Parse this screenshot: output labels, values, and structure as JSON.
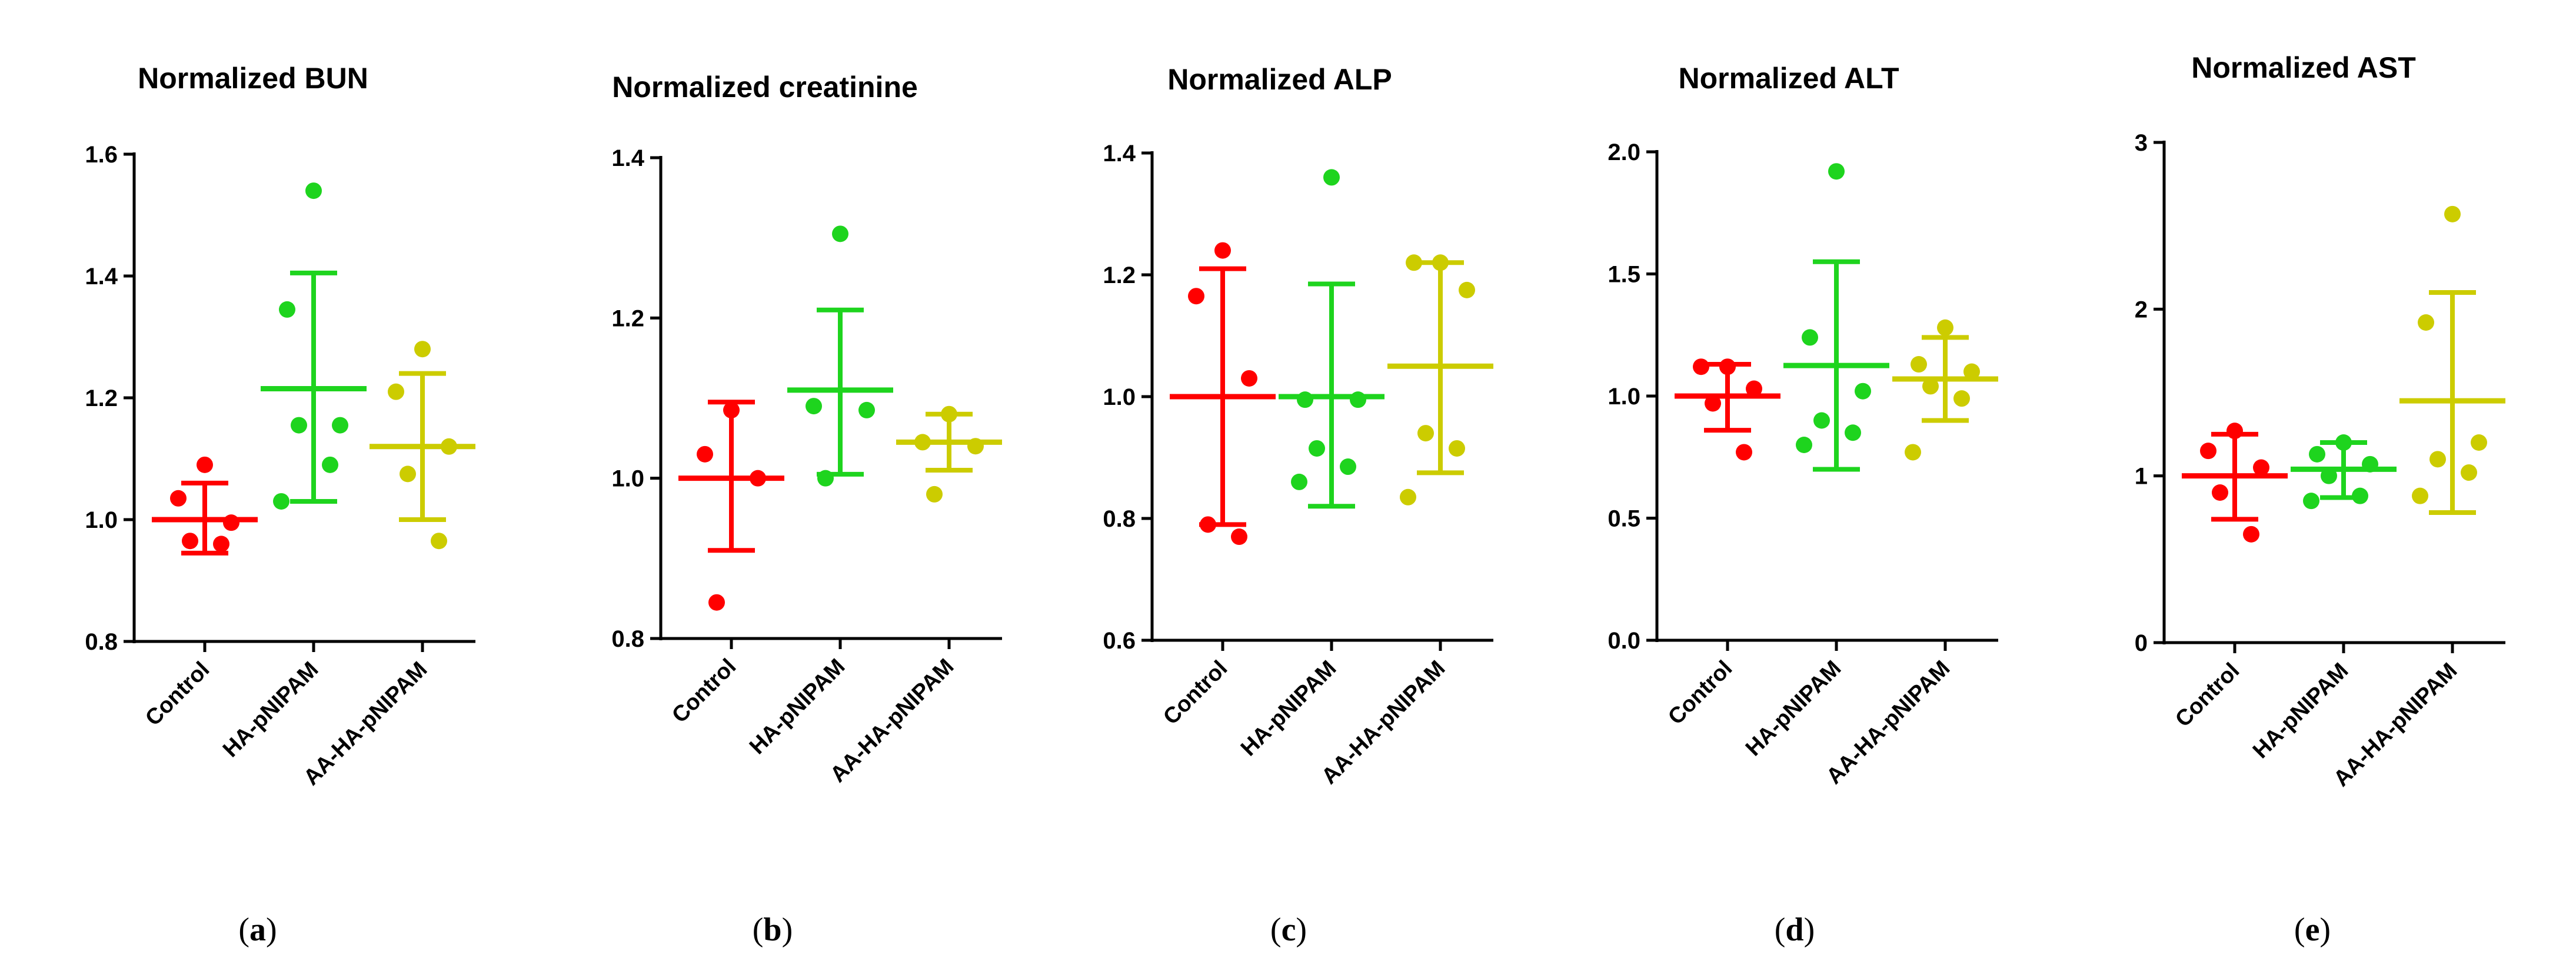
{
  "colors": {
    "control": "#ff0000",
    "ha": "#1ed41e",
    "aa": "#cccc00"
  },
  "chart_data": [
    {
      "type": "scatter",
      "letter": "a",
      "title": "Normalized BUN",
      "ylim": [
        0.8,
        1.6
      ],
      "yticks": [
        "0.8",
        "1.0",
        "1.2",
        "1.4",
        "1.6"
      ],
      "categories": [
        "Control",
        "HA-pNIPAM",
        "AA-HA-pNIPAM"
      ],
      "series": [
        {
          "name": "Control",
          "points": [
            1.09,
            1.035,
            0.995,
            0.965,
            0.96
          ],
          "mean": 1.0,
          "sd_low": 0.945,
          "sd_high": 1.06
        },
        {
          "name": "HA-pNIPAM",
          "points": [
            1.54,
            1.345,
            1.155,
            1.155,
            1.09,
            1.03
          ],
          "mean": 1.215,
          "sd_low": 1.03,
          "sd_high": 1.405
        },
        {
          "name": "AA-HA-pNIPAM",
          "points": [
            1.28,
            1.21,
            1.12,
            1.075,
            0.965
          ],
          "mean": 1.12,
          "sd_low": 1.0,
          "sd_high": 1.24
        }
      ]
    },
    {
      "type": "scatter",
      "letter": "b",
      "title": "Normalized creatinine",
      "ylim": [
        0.8,
        1.4
      ],
      "yticks": [
        "0.8",
        "1.0",
        "1.2",
        "1.4"
      ],
      "categories": [
        "Control",
        "HA-pNIPAM",
        "AA-HA-pNIPAM"
      ],
      "series": [
        {
          "name": "Control",
          "points": [
            1.085,
            1.03,
            1.0,
            0.845
          ],
          "mean": 1.0,
          "sd_low": 0.91,
          "sd_high": 1.095
        },
        {
          "name": "HA-pNIPAM",
          "points": [
            1.305,
            1.09,
            1.085,
            1.0
          ],
          "mean": 1.11,
          "sd_low": 1.005,
          "sd_high": 1.21
        },
        {
          "name": "AA-HA-pNIPAM",
          "points": [
            1.08,
            1.045,
            1.04,
            0.98
          ],
          "mean": 1.045,
          "sd_low": 1.01,
          "sd_high": 1.08
        }
      ]
    },
    {
      "type": "scatter",
      "letter": "c",
      "title": "Normalized ALP",
      "ylim": [
        0.6,
        1.4
      ],
      "yticks": [
        "0.6",
        "0.8",
        "1.0",
        "1.2",
        "1.4"
      ],
      "categories": [
        "Control",
        "HA-pNIPAM",
        "AA-HA-pNIPAM"
      ],
      "series": [
        {
          "name": "Control",
          "points": [
            1.24,
            1.165,
            1.03,
            0.79,
            0.77
          ],
          "mean": 1.0,
          "sd_low": 0.79,
          "sd_high": 1.21
        },
        {
          "name": "HA-pNIPAM",
          "points": [
            1.36,
            0.995,
            0.995,
            0.915,
            0.885,
            0.86
          ],
          "mean": 1.0,
          "sd_low": 0.82,
          "sd_high": 1.185
        },
        {
          "name": "AA-HA-pNIPAM",
          "points": [
            1.22,
            1.22,
            1.175,
            0.94,
            0.915,
            0.835
          ],
          "mean": 1.05,
          "sd_low": 0.875,
          "sd_high": 1.22
        }
      ]
    },
    {
      "type": "scatter",
      "letter": "d",
      "title": "Normalized ALT",
      "ylim": [
        0.0,
        2.0
      ],
      "yticks": [
        "0.0",
        "0.5",
        "1.0",
        "1.5",
        "2.0"
      ],
      "categories": [
        "Control",
        "HA-pNIPAM",
        "AA-HA-pNIPAM"
      ],
      "series": [
        {
          "name": "Control",
          "points": [
            1.12,
            1.12,
            1.03,
            0.97,
            0.77
          ],
          "mean": 1.0,
          "sd_low": 0.86,
          "sd_high": 1.13
        },
        {
          "name": "HA-pNIPAM",
          "points": [
            1.92,
            1.24,
            1.02,
            0.9,
            0.85,
            0.8
          ],
          "mean": 1.125,
          "sd_low": 0.7,
          "sd_high": 1.55
        },
        {
          "name": "AA-HA-pNIPAM",
          "points": [
            1.28,
            1.13,
            1.1,
            1.04,
            0.99,
            0.77
          ],
          "mean": 1.07,
          "sd_low": 0.9,
          "sd_high": 1.24
        }
      ]
    },
    {
      "type": "scatter",
      "letter": "e",
      "title": "Normalized AST",
      "ylim": [
        0,
        3
      ],
      "yticks": [
        "0",
        "1",
        "2",
        "3"
      ],
      "categories": [
        "Control",
        "HA-pNIPAM",
        "AA-HA-pNIPAM"
      ],
      "series": [
        {
          "name": "Control",
          "points": [
            1.27,
            1.15,
            1.05,
            0.9,
            0.65
          ],
          "mean": 1.0,
          "sd_low": 0.74,
          "sd_high": 1.25
        },
        {
          "name": "HA-pNIPAM",
          "points": [
            1.2,
            1.13,
            1.07,
            1.0,
            0.88,
            0.85
          ],
          "mean": 1.04,
          "sd_low": 0.87,
          "sd_high": 1.2
        },
        {
          "name": "AA-HA-pNIPAM",
          "points": [
            2.57,
            1.92,
            1.2,
            1.1,
            1.02,
            0.88
          ],
          "mean": 1.45,
          "sd_low": 0.78,
          "sd_high": 2.1
        }
      ]
    }
  ]
}
